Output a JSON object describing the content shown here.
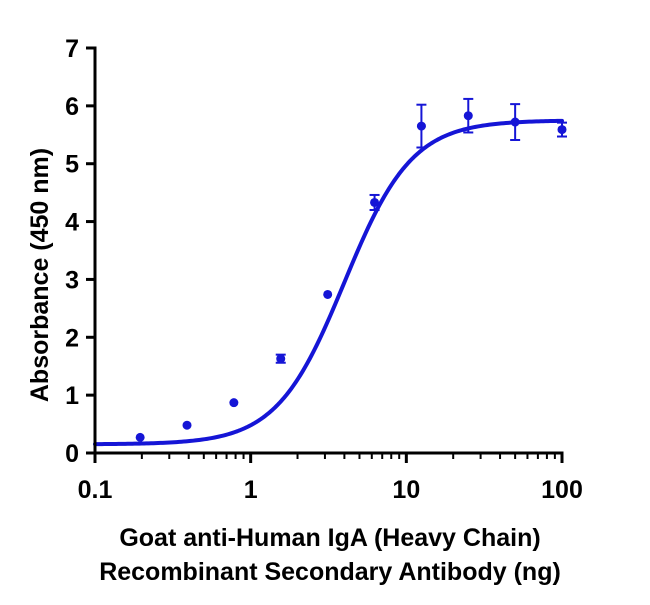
{
  "chart_data": {
    "type": "scatter",
    "scale_x": "log",
    "xlabel_lines": [
      "Goat anti-Human IgA (Heavy  Chain)",
      "Recombinant Secondary Antibody (ng)"
    ],
    "ylabel": "Absorbance (450 nm)",
    "xlim": [
      0.1,
      100
    ],
    "ylim": [
      0,
      7
    ],
    "x_ticks": [
      0.1,
      1,
      10,
      100
    ],
    "x_tick_labels": [
      "0.1",
      "1",
      "10",
      "100"
    ],
    "y_ticks": [
      0,
      1,
      2,
      3,
      4,
      5,
      6,
      7
    ],
    "y_tick_labels": [
      "0",
      "1",
      "2",
      "3",
      "4",
      "5",
      "6",
      "7"
    ],
    "series_color": "#1515d6",
    "series": [
      {
        "name": "Absorbance",
        "x": [
          0.195,
          0.39,
          0.78,
          1.56,
          3.125,
          6.25,
          12.5,
          25,
          50,
          100
        ],
        "y": [
          0.27,
          0.48,
          0.87,
          1.63,
          2.74,
          4.33,
          5.65,
          5.83,
          5.72,
          5.59
        ],
        "err": [
          0.03,
          0.03,
          0.03,
          0.07,
          0.04,
          0.13,
          0.37,
          0.29,
          0.31,
          0.12
        ]
      }
    ],
    "fit": {
      "model": "4PL",
      "bottom": 0.15,
      "top": 5.75,
      "ec50": 4.0,
      "hill": 2.0
    }
  }
}
